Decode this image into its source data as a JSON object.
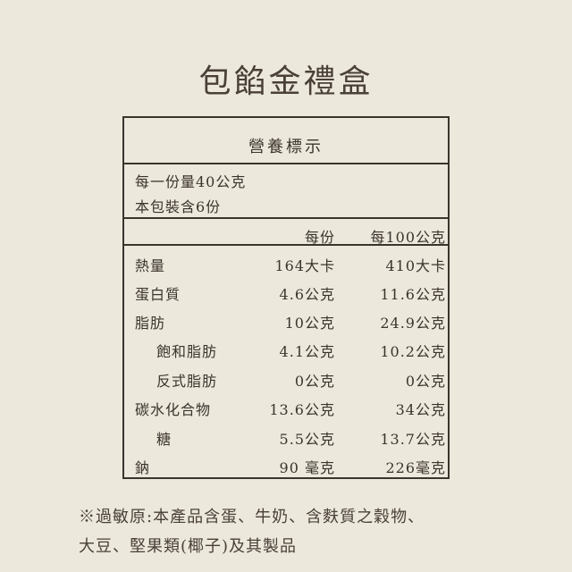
{
  "title": "包餡金禮盒",
  "label": {
    "heading": "營養標示",
    "serving_size": "每一份量40公克",
    "servings_per_package": "本包裝含6份",
    "col_per_serving": "每份",
    "col_per_100g": "每100公克",
    "rows": [
      {
        "name": "熱量",
        "per_serving": "164大卡",
        "per_100g": "410大卡"
      },
      {
        "name": "蛋白質",
        "per_serving": "4.6公克",
        "per_100g": "11.6公克"
      },
      {
        "name": "脂肪",
        "per_serving": "10公克",
        "per_100g": "24.9公克"
      },
      {
        "name": "飽和脂肪",
        "per_serving": "4.1公克",
        "per_100g": "10.2公克"
      },
      {
        "name": "反式脂肪",
        "per_serving": "0公克",
        "per_100g": "0公克"
      },
      {
        "name": "碳水化合物",
        "per_serving": "13.6公克",
        "per_100g": "34公克"
      },
      {
        "name": "糖",
        "per_serving": "5.5公克",
        "per_100g": "13.7公克"
      },
      {
        "name": "鈉",
        "per_serving": "90 毫克",
        "per_100g": "226毫克"
      }
    ]
  },
  "allergen": {
    "line1": "※過敏原:本產品含蛋、牛奶、含麩質之穀物、",
    "line2": "大豆、堅果類(椰子)及其製品"
  }
}
